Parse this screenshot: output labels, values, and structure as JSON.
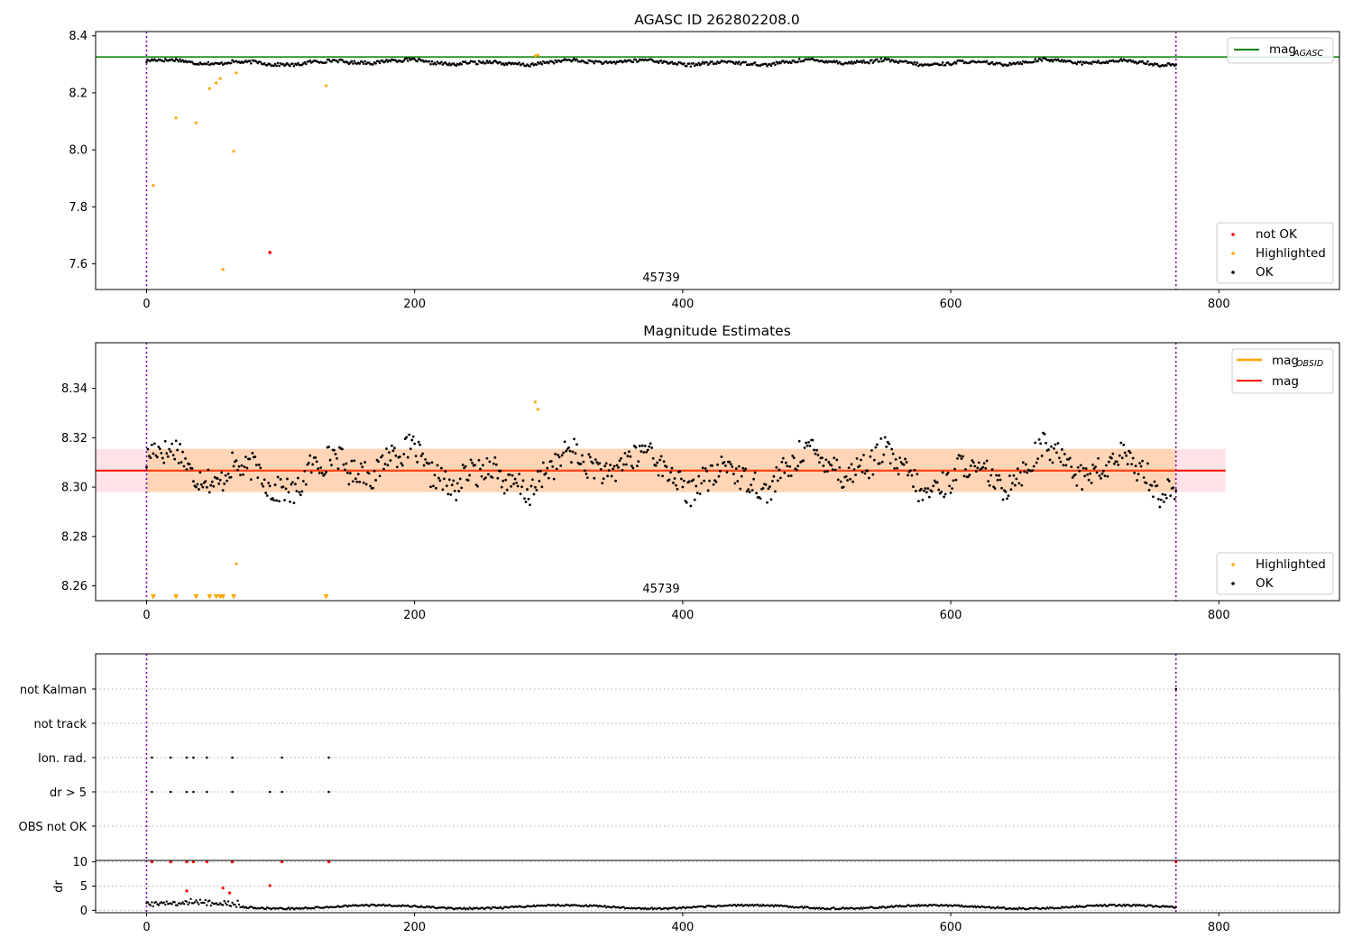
{
  "chart_data": [
    {
      "type": "scatter",
      "title": "AGASC ID 262802208.0",
      "xlim": [
        -38,
        890
      ],
      "ylim": [
        7.51,
        8.415
      ],
      "xticks": [
        0,
        200,
        400,
        600,
        800
      ],
      "yticks": [
        7.6,
        7.8,
        8.0,
        8.2,
        8.4
      ],
      "xtick_labels": [
        "0",
        "200",
        "400",
        "600",
        "800"
      ],
      "ytick_labels": [
        "7.6",
        "7.8",
        "8.0",
        "8.2",
        "8.4"
      ],
      "obsid_label": "45739",
      "obsid_boundaries": [
        0,
        768
      ],
      "mag_agasc": 8.326,
      "legend_line": {
        "label": "mag",
        "sub": "AGASC",
        "color": "#008000",
        "position": "top-right"
      },
      "legend_points": {
        "position": "bottom-right",
        "entries": [
          {
            "label": "not OK",
            "color": "#ff0000"
          },
          {
            "label": "Highlighted",
            "color": "#ffa500"
          },
          {
            "label": "OK",
            "color": "#000000"
          }
        ]
      },
      "series": [
        {
          "name": "not OK",
          "color": "#ff0000",
          "points": [
            [
              92,
              7.64
            ]
          ]
        },
        {
          "name": "Highlighted",
          "color": "#ffa500",
          "points": [
            [
              5,
              7.875
            ],
            [
              22,
              8.112
            ],
            [
              37,
              8.095
            ],
            [
              47,
              8.215
            ],
            [
              52,
              8.235
            ],
            [
              55,
              8.25
            ],
            [
              57,
              7.58
            ],
            [
              65,
              7.995
            ],
            [
              67,
              8.27
            ],
            [
              134,
              8.225
            ],
            [
              290,
              8.33
            ],
            [
              292,
              8.332
            ]
          ]
        },
        {
          "name": "OK",
          "color": "#000000",
          "baseline": 8.307
        }
      ]
    },
    {
      "type": "scatter",
      "title": "Magnitude Estimates",
      "xlim": [
        -38,
        890
      ],
      "ylim": [
        8.254,
        8.3585
      ],
      "xticks": [
        0,
        200,
        400,
        600,
        800
      ],
      "yticks": [
        8.26,
        8.28,
        8.3,
        8.32,
        8.34
      ],
      "xtick_labels": [
        "0",
        "200",
        "400",
        "600",
        "800"
      ],
      "ytick_labels": [
        "8.26",
        "8.28",
        "8.30",
        "8.32",
        "8.34"
      ],
      "obsid_label": "45739",
      "obsid_boundaries": [
        0,
        768
      ],
      "mag_mean": 8.3067,
      "band": [
        8.298,
        8.3155
      ],
      "band_x": [
        -38,
        805
      ],
      "obsid_band_x": [
        0,
        768
      ],
      "legend_lines": {
        "position": "top-right",
        "entries": [
          {
            "label": "mag",
            "sub": "OBSID",
            "color": "#ffa500"
          },
          {
            "label": "mag",
            "sub": "",
            "color": "#ff0000"
          }
        ]
      },
      "legend_points": {
        "position": "bottom-right",
        "entries": [
          {
            "label": "Highlighted",
            "color": "#ffa500"
          },
          {
            "label": "OK",
            "color": "#000000"
          }
        ]
      },
      "series": [
        {
          "name": "Highlighted",
          "color": "#ffa500",
          "points": [
            [
              290,
              8.3345
            ],
            [
              292,
              8.3315
            ],
            [
              67,
              8.269
            ]
          ]
        },
        {
          "name": "Highlighted",
          "marker": "triangle-down",
          "color": "#ffa500",
          "points": [
            [
              5,
              8.2555
            ],
            [
              22,
              8.2555
            ],
            [
              37,
              8.2555
            ],
            [
              47,
              8.2555
            ],
            [
              52,
              8.2555
            ],
            [
              55,
              8.2555
            ],
            [
              57,
              8.2555
            ],
            [
              65,
              8.2555
            ],
            [
              134,
              8.2555
            ]
          ]
        },
        {
          "name": "OK",
          "color": "#000000",
          "baseline": 8.3067
        }
      ]
    },
    {
      "type": "scatter",
      "xlim": [
        -38,
        890
      ],
      "categories": [
        "not Kalman",
        "not track",
        "Ion. rad.",
        "dr > 5",
        "OBS not OK"
      ],
      "flags": {
        "not Kalman": [
          768
        ],
        "not track": [],
        "Ion. rad.": [
          4,
          18,
          30,
          35,
          45,
          64,
          101,
          136
        ],
        "dr > 5": [
          4,
          18,
          30,
          35,
          45,
          64,
          92,
          101,
          136
        ],
        "OBS not OK": []
      },
      "obsid_boundaries": [
        0,
        768
      ]
    },
    {
      "type": "scatter",
      "ylabel": "dr",
      "xlim": [
        -38,
        890
      ],
      "ylim": [
        -0.5,
        10.3
      ],
      "xticks": [
        0,
        200,
        400,
        600,
        800
      ],
      "yticks": [
        0,
        5,
        10
      ],
      "xtick_labels": [
        "0",
        "200",
        "400",
        "600",
        "800"
      ],
      "ytick_labels": [
        "0",
        "5",
        "10"
      ],
      "obsid_boundaries": [
        0,
        768
      ],
      "series": [
        {
          "name": "dr > 5",
          "color": "#ff0000",
          "points": [
            [
              4,
              10
            ],
            [
              18,
              10
            ],
            [
              30,
              10
            ],
            [
              35,
              10
            ],
            [
              45,
              10
            ],
            [
              64,
              10
            ],
            [
              101,
              10
            ],
            [
              136,
              10
            ],
            [
              768,
              10
            ],
            [
              30,
              4
            ],
            [
              57,
              4.6
            ],
            [
              62,
              3.6
            ],
            [
              92,
              5.1
            ]
          ]
        },
        {
          "name": "dr",
          "color": "#000000",
          "baseline": 0.7
        }
      ]
    }
  ]
}
